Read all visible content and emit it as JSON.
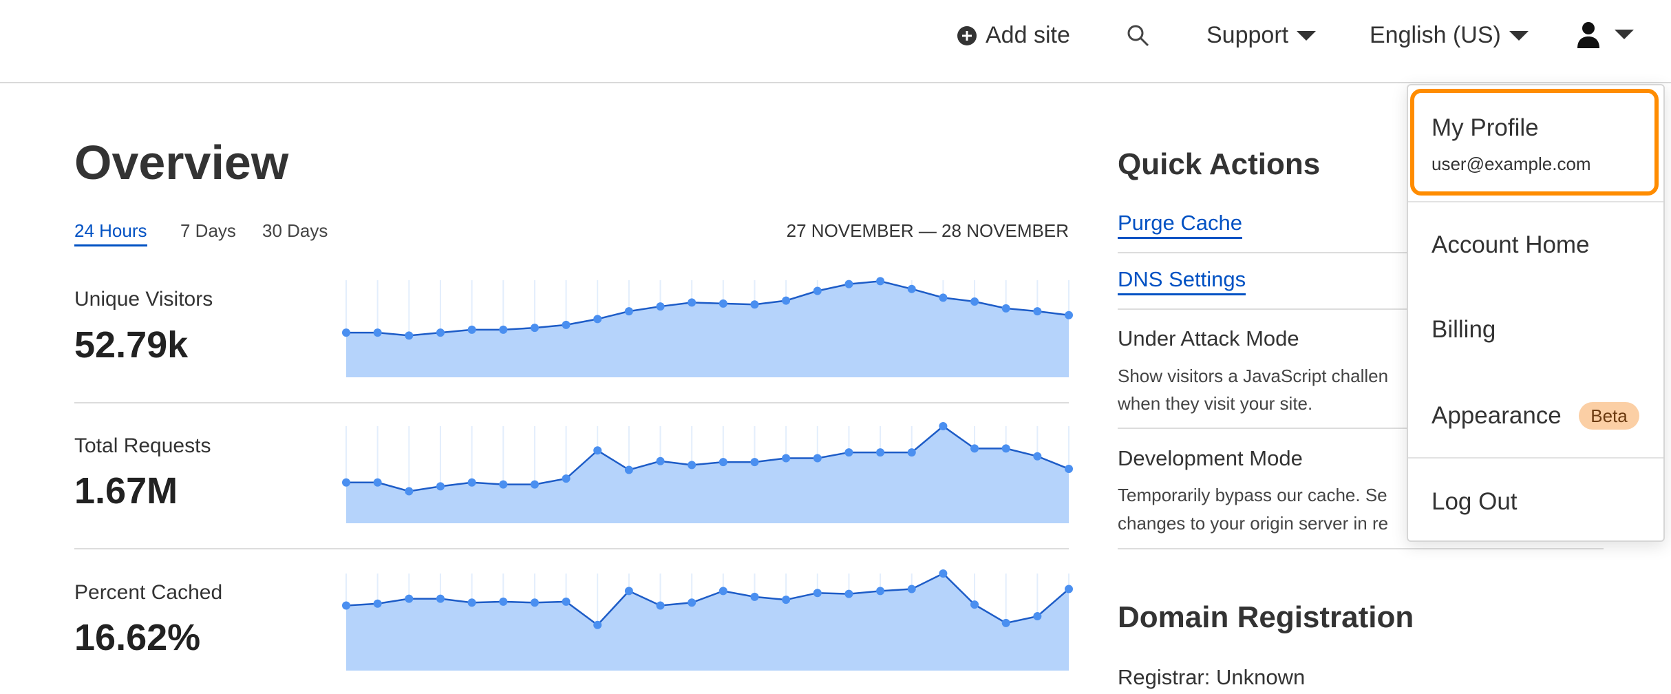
{
  "header": {
    "add_site": "Add site",
    "support": "Support",
    "language": "English (US)",
    "icons": [
      "plus-circle-icon",
      "search-icon",
      "user-icon",
      "chevron-down-icon"
    ]
  },
  "main": {
    "title": "Overview",
    "tabs": [
      {
        "label": "24 Hours",
        "active": true
      },
      {
        "label": "7 Days"
      },
      {
        "label": "30 Days"
      }
    ],
    "date_range": "27 NOVEMBER — 28 NOVEMBER",
    "stats": [
      {
        "label": "Unique Visitors",
        "value": "52.79k",
        "trend_relative": [
          46,
          46,
          43,
          46,
          49,
          49,
          51,
          54,
          60,
          68,
          73,
          77,
          76,
          75,
          79,
          89,
          96,
          99,
          91,
          82,
          78,
          71,
          68,
          64
        ]
      },
      {
        "label": "Total Requests",
        "value": "1.67M",
        "trend_relative": [
          42,
          42,
          33,
          38,
          42,
          40,
          40,
          46,
          75,
          55,
          64,
          60,
          63,
          63,
          67,
          67,
          73,
          73,
          73,
          100,
          77,
          77,
          69,
          56
        ]
      },
      {
        "label": "Percent Cached",
        "value": "16.62%",
        "trend_relative": [
          67,
          69,
          74,
          74,
          70,
          71,
          70,
          71,
          47,
          82,
          67,
          70,
          82,
          76,
          73,
          80,
          79,
          82,
          84,
          100,
          68,
          49,
          56,
          84
        ]
      }
    ]
  },
  "quick_actions": {
    "title": "Quick Actions",
    "purge_cache": "Purge Cache",
    "dns_settings": "DNS Settings",
    "under_attack_title": "Under Attack Mode",
    "under_attack_desc_1": "Show visitors a JavaScript challen",
    "under_attack_desc_2": "when they visit your site.",
    "dev_mode_title": "Development Mode",
    "dev_mode_desc_1": "Temporarily bypass our cache. Se",
    "dev_mode_desc_2": "changes to your origin server in re"
  },
  "domain_registration": {
    "title": "Domain Registration",
    "registrar": "Registrar: Unknown"
  },
  "user_menu": {
    "my_profile": "My Profile",
    "email": "user@example.com",
    "account_home": "Account Home",
    "billing": "Billing",
    "appearance": "Appearance",
    "beta_badge": "Beta",
    "log_out": "Log Out"
  },
  "colors": {
    "accent": "#0051c3",
    "highlight": "#ff8c00",
    "chart_fill": "#b5d3fb",
    "chart_line": "#1d5cc7",
    "chart_dot": "#4a8ff0",
    "badge": "#fbcfa5"
  }
}
